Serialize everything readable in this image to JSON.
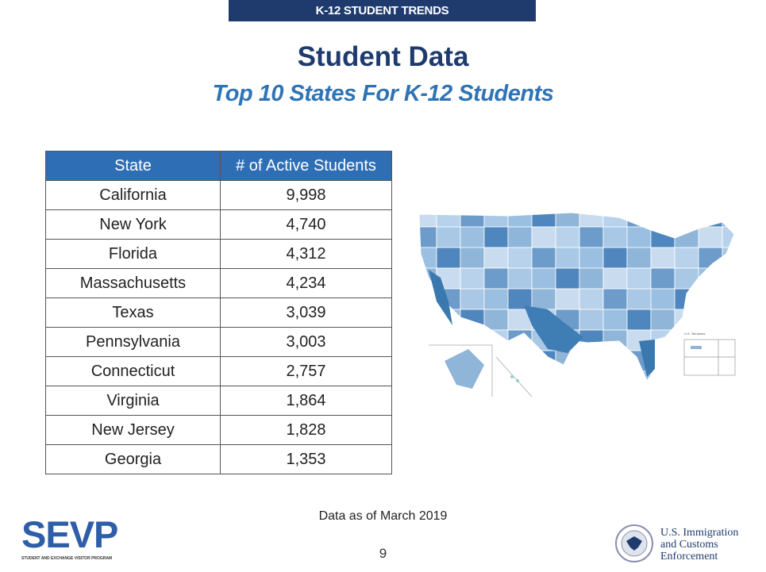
{
  "banner": "K-12 STUDENT TRENDS",
  "title": "Student Data",
  "subtitle": "Top 10 States For K-12 Students",
  "table": {
    "headers": [
      "State",
      "# of Active Students"
    ],
    "rows": [
      [
        "California",
        "9,998"
      ],
      [
        "New York",
        "4,740"
      ],
      [
        "Florida",
        "4,312"
      ],
      [
        "Massachusetts",
        "4,234"
      ],
      [
        "Texas",
        "3,039"
      ],
      [
        "Pennsylvania",
        "3,003"
      ],
      [
        "Connecticut",
        "2,757"
      ],
      [
        "Virginia",
        "1,864"
      ],
      [
        "New Jersey",
        "1,828"
      ],
      [
        "Georgia",
        "1,353"
      ]
    ]
  },
  "map": {
    "territories_label": "U.S. Territories"
  },
  "note": "Data as of March 2019",
  "page_number": "9",
  "footer": {
    "sevp_logo": "SEVP",
    "sevp_tagline": "STUDENT AND EXCHANGE VISITOR PROGRAM",
    "ice_line1": "U.S. Immigration",
    "ice_line2": "and Customs",
    "ice_line3": "Enforcement"
  },
  "colors": {
    "navy": "#1f3b6e",
    "accent": "#2e74b5",
    "header": "#2e6eb5"
  }
}
